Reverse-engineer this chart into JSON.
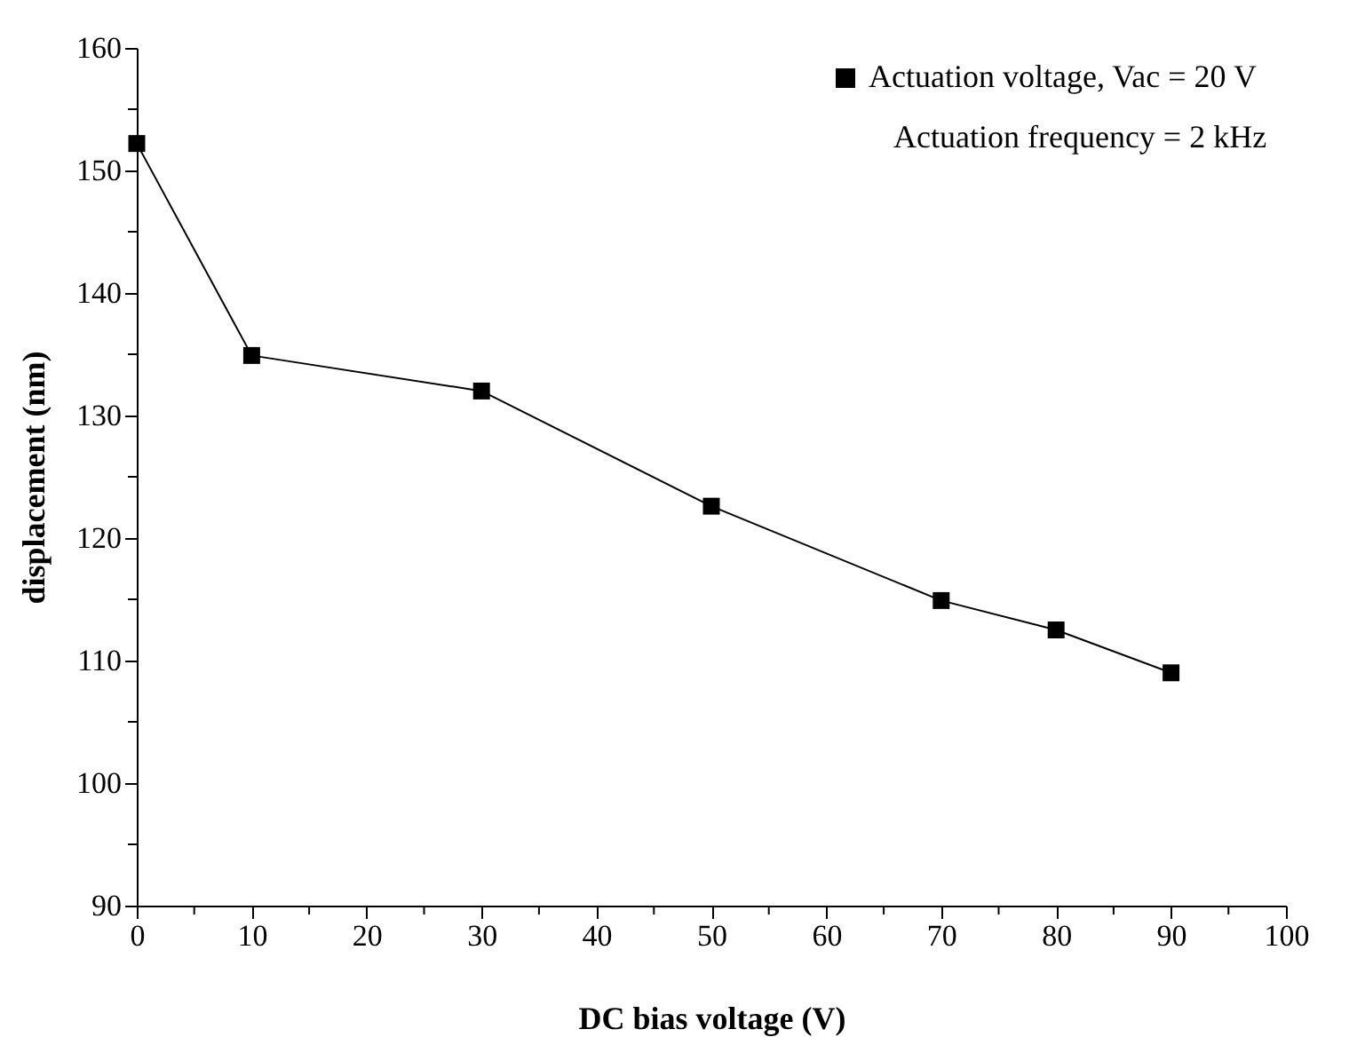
{
  "chart_data": {
    "type": "line",
    "xlabel": "DC bias voltage (V)",
    "ylabel": "displacement (nm)",
    "x": [
      0,
      10,
      30,
      50,
      70,
      80,
      90
    ],
    "series": [
      {
        "name": "Actuation voltage, Vac = 20 V",
        "color": "#000000",
        "values": [
          152.2,
          134.9,
          132.0,
          122.6,
          114.9,
          112.5,
          109.0
        ]
      }
    ],
    "xlim": [
      0,
      100
    ],
    "ylim": [
      90,
      160
    ],
    "xticks": [
      0,
      {
        "value": 5,
        "label": null
      },
      10,
      {
        "value": 15,
        "label": null
      },
      20,
      {
        "value": 25,
        "label": null
      },
      30,
      {
        "value": 35,
        "label": null
      },
      40,
      {
        "value": 45,
        "label": null
      },
      50,
      {
        "value": 55,
        "label": null
      },
      60,
      {
        "value": 65,
        "label": null
      },
      70,
      {
        "value": 75,
        "label": null
      },
      80,
      {
        "value": 85,
        "label": null
      },
      90,
      {
        "value": 95,
        "label": null
      },
      100
    ],
    "yticks": [
      90,
      {
        "value": 95,
        "label": null
      },
      100,
      {
        "value": 105,
        "label": null
      },
      110,
      {
        "value": 115,
        "label": null
      },
      120,
      {
        "value": 125,
        "label": null
      },
      130,
      {
        "value": 135,
        "label": null
      },
      140,
      {
        "value": 145,
        "label": null
      },
      150,
      {
        "value": 155,
        "label": null
      },
      160
    ],
    "annotations": [
      "Actuation frequency = 2 kHz"
    ],
    "legend": "top right",
    "marker": "square",
    "line_style": "solid",
    "grid": false
  }
}
